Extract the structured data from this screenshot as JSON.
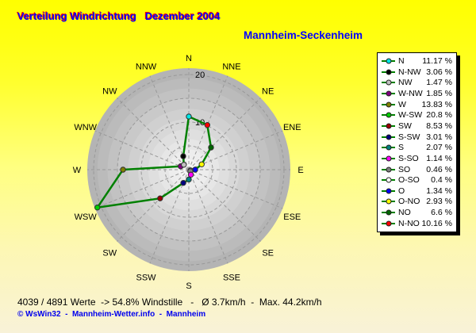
{
  "header": {
    "title": "Verteilung Windrichtung   Dezember 2004",
    "station": "Mannheim-Seckenheim"
  },
  "colors": {
    "title_text": "#0000ff",
    "title_shadow": "#ff0000",
    "station_text": "#0000ff",
    "background_top": "#ffff00",
    "background_bottom": "#f8f2d8",
    "disc_outer": "#b4b4b4",
    "disc_inner": "#f4f4f4",
    "grid": "#999999",
    "polygon": "#008000",
    "label_text": "#000000",
    "credit_text": "#0000ee"
  },
  "chart_data": {
    "type": "radar",
    "title": "Verteilung Windrichtung Dezember 2004",
    "subtitle": "Mannheim-Seckenheim",
    "units": "%",
    "categories": [
      "N",
      "NNE",
      "NE",
      "ENE",
      "E",
      "ESE",
      "SE",
      "SSE",
      "S",
      "SSW",
      "SW",
      "WSW",
      "W",
      "WNW",
      "NW",
      "NNW"
    ],
    "series": [
      {
        "name": "Windrichtung Verteilung (%)",
        "values": [
          11.17,
          10.16,
          6.6,
          2.93,
          1.34,
          0.4,
          0.46,
          1.14,
          2.07,
          3.01,
          8.53,
          20.8,
          13.83,
          1.85,
          1.47,
          3.06
        ]
      }
    ],
    "marker_colors": [
      "#00e6e6",
      "#ff0000",
      "#006400",
      "#ffff00",
      "#0000ff",
      "#ffffff",
      "#808080",
      "#ff00ff",
      "#008080",
      "#000080",
      "#990000",
      "#00cc00",
      "#808000",
      "#800080",
      "#c0c0c0",
      "#000000"
    ],
    "line_color": "#008000",
    "rings": [
      5,
      10,
      15,
      20
    ],
    "ring_labels": [
      {
        "value": 10,
        "text": "10"
      },
      {
        "value": 20,
        "text": "20"
      }
    ],
    "rmax": 20,
    "grid": true,
    "legend_position": "right"
  },
  "legend": {
    "line_color": "#008000",
    "items": [
      {
        "label": "N",
        "value": "11.17 %",
        "color": "#00e6e6"
      },
      {
        "label": "N-NW",
        "value": "3.06 %",
        "color": "#000000"
      },
      {
        "label": "NW",
        "value": "1.47 %",
        "color": "#c0c0c0"
      },
      {
        "label": "W-NW",
        "value": "1.85 %",
        "color": "#800080"
      },
      {
        "label": "W",
        "value": "13.83 %",
        "color": "#808000"
      },
      {
        "label": "W-SW",
        "value": "20.8 %",
        "color": "#00cc00"
      },
      {
        "label": "SW",
        "value": "8.53 %",
        "color": "#990000"
      },
      {
        "label": "S-SW",
        "value": "3.01 %",
        "color": "#000080"
      },
      {
        "label": "S",
        "value": "2.07 %",
        "color": "#008080"
      },
      {
        "label": "S-SO",
        "value": "1.14 %",
        "color": "#ff00ff"
      },
      {
        "label": "SO",
        "value": "0.46 %",
        "color": "#808080"
      },
      {
        "label": "O-SO",
        "value": "0.4 %",
        "color": "#ffffff"
      },
      {
        "label": "O",
        "value": "1.34 %",
        "color": "#0000ff"
      },
      {
        "label": "O-NO",
        "value": "2.93 %",
        "color": "#ffff00"
      },
      {
        "label": "NO",
        "value": "6.6 %",
        "color": "#006400"
      },
      {
        "label": "N-NO",
        "value": "10.16 %",
        "color": "#ff0000"
      }
    ]
  },
  "footer": {
    "stats": "4039 / 4891 Werte  -> 54.8% Windstille   -   Ø 3.7km/h  -  Max. 44.2km/h",
    "credit": "© WsWin32  -  Mannheim-Wetter.info  -  Mannheim"
  }
}
